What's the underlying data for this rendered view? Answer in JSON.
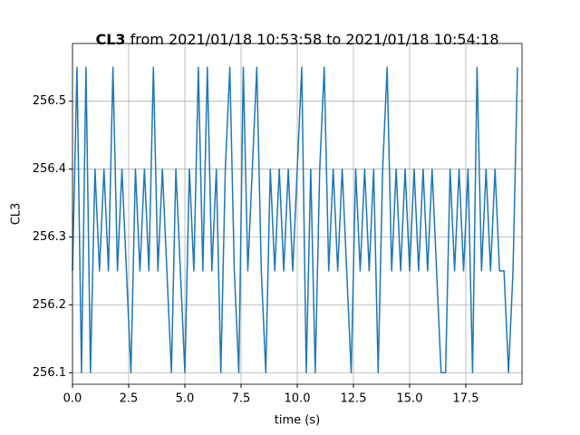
{
  "chart_data": {
    "type": "line",
    "title_name": "CL3",
    "title": "from 2021/01/18 10:53:58 to 2021/01/18 10:54:18",
    "xlabel": "time (s)",
    "ylabel": "CL3",
    "x": [
      0,
      0.2,
      0.4,
      0.6,
      0.8,
      1,
      1.2,
      1.4,
      1.6,
      1.8,
      2,
      2.2,
      2.4,
      2.6,
      2.8,
      3,
      3.2,
      3.4,
      3.6,
      3.8,
      4,
      4.2,
      4.4,
      4.6,
      4.8,
      5,
      5.2,
      5.4,
      5.6,
      5.8,
      6,
      6.2,
      6.4,
      6.6,
      6.8,
      7,
      7.2,
      7.4,
      7.6,
      7.8,
      8,
      8.2,
      8.4,
      8.6,
      8.8,
      9,
      9.2,
      9.4,
      9.6,
      9.8,
      10,
      10.2,
      10.4,
      10.6,
      10.8,
      11,
      11.2,
      11.4,
      11.6,
      11.8,
      12,
      12.2,
      12.4,
      12.6,
      12.8,
      13,
      13.2,
      13.4,
      13.6,
      13.8,
      14,
      14.2,
      14.4,
      14.6,
      14.8,
      15,
      15.2,
      15.4,
      15.6,
      15.8,
      16,
      16.2,
      16.4,
      16.6,
      16.8,
      17,
      17.2,
      17.4,
      17.6,
      17.8,
      18,
      18.2,
      18.4,
      18.6,
      18.8,
      19,
      19.2,
      19.4,
      19.6,
      19.8
    ],
    "series": [
      {
        "name": "CL3",
        "color": "#1f77b4",
        "values": [
          256.25,
          256.55,
          256.1,
          256.55,
          256.1,
          256.4,
          256.25,
          256.4,
          256.25,
          256.55,
          256.25,
          256.4,
          256.25,
          256.1,
          256.4,
          256.25,
          256.4,
          256.25,
          256.55,
          256.25,
          256.4,
          256.25,
          256.1,
          256.4,
          256.25,
          256.1,
          256.4,
          256.25,
          256.55,
          256.25,
          256.55,
          256.25,
          256.4,
          256.1,
          256.4,
          256.55,
          256.25,
          256.1,
          256.55,
          256.25,
          256.4,
          256.55,
          256.25,
          256.1,
          256.4,
          256.25,
          256.4,
          256.25,
          256.4,
          256.25,
          256.4,
          256.55,
          256.1,
          256.4,
          256.1,
          256.4,
          256.55,
          256.25,
          256.4,
          256.25,
          256.4,
          256.25,
          256.1,
          256.4,
          256.25,
          256.4,
          256.25,
          256.4,
          256.1,
          256.4,
          256.55,
          256.25,
          256.4,
          256.25,
          256.4,
          256.25,
          256.4,
          256.25,
          256.4,
          256.25,
          256.4,
          256.25,
          256.1,
          256.1,
          256.4,
          256.25,
          256.4,
          256.25,
          256.4,
          256.1,
          256.55,
          256.25,
          256.4,
          256.25,
          256.4,
          256.25,
          256.25,
          256.1,
          256.25,
          256.55
        ]
      }
    ],
    "xlim": [
      0,
      20
    ],
    "ylim": [
      256.083,
      256.585
    ],
    "xticks": [
      {
        "value": 0,
        "label": "0.0"
      },
      2.5,
      {
        "value": 5,
        "label": "5.0"
      },
      7.5,
      {
        "value": 10,
        "label": "10.0"
      },
      12.5,
      {
        "value": 15,
        "label": "15.0"
      },
      17.5
    ],
    "yticks": [
      256.1,
      256.2,
      256.3,
      256.4,
      256.5
    ],
    "grid": true
  }
}
